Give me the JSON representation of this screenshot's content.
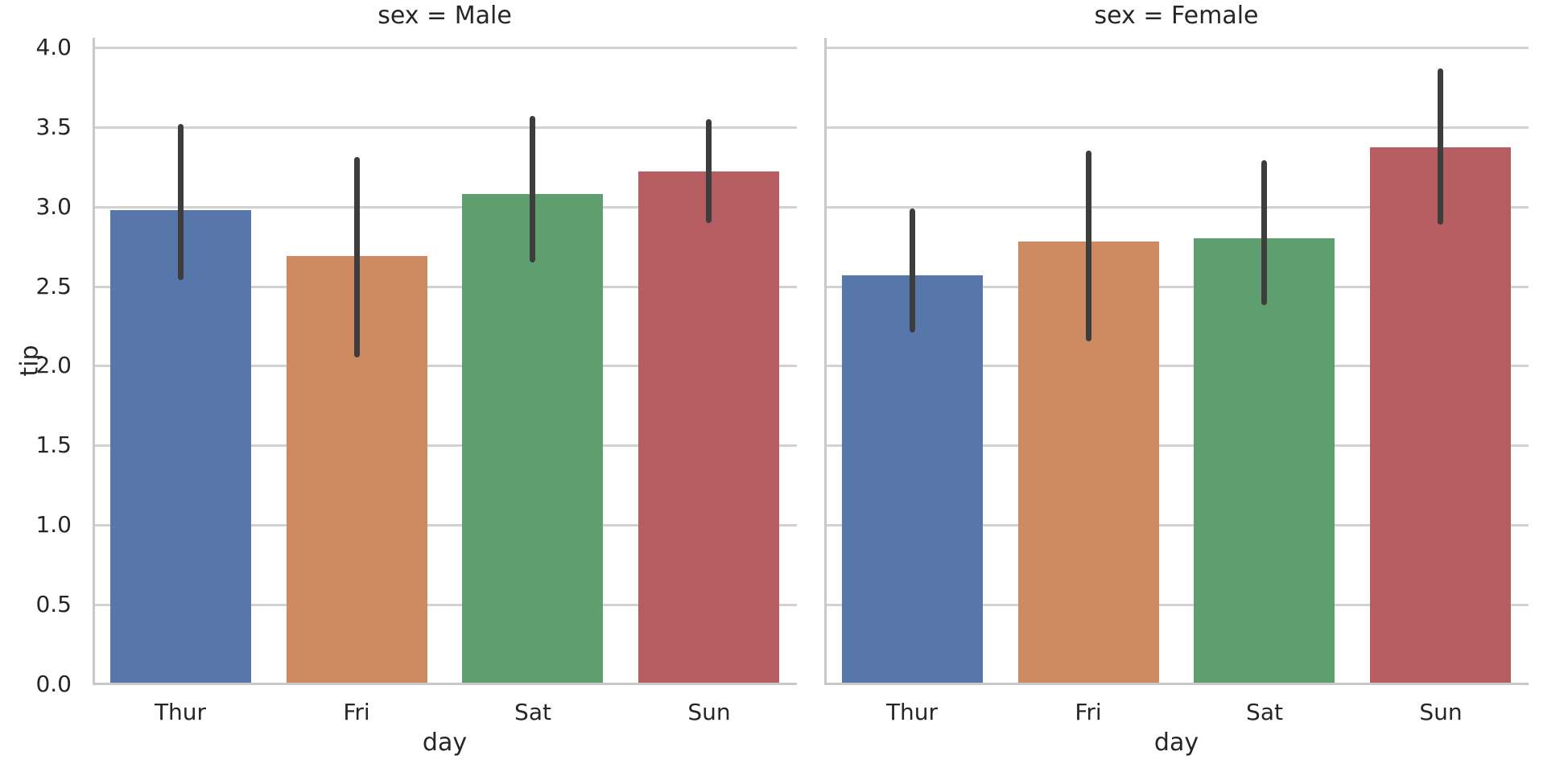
{
  "figure": {
    "background": "#ffffff",
    "text_color": "#262626"
  },
  "chart_data": {
    "type": "bar",
    "facet_by": "sex",
    "categories": [
      "Thur",
      "Fri",
      "Sat",
      "Sun"
    ],
    "xlabel": "day",
    "ylabel": "tip",
    "yticks": [
      0.0,
      0.5,
      1.0,
      1.5,
      2.0,
      2.5,
      3.0,
      3.5,
      4.0
    ],
    "ylim": [
      0,
      4.06
    ],
    "grid": true,
    "legend": "none",
    "bar_width_fraction": 0.8,
    "bar_colors": [
      "#5776a9",
      "#ce8a60",
      "#5f9e6e",
      "#b55d61"
    ],
    "errorbar_color": "#3d3d3d",
    "grid_color": "#d2d2d2",
    "spine_color": "#c8c8c8",
    "facets": [
      {
        "title": "sex = Male",
        "values": [
          2.98,
          2.69,
          3.08,
          3.22
        ],
        "ci": [
          [
            2.54,
            3.52
          ],
          [
            2.05,
            3.31
          ],
          [
            2.65,
            3.57
          ],
          [
            2.9,
            3.55
          ]
        ]
      },
      {
        "title": "sex = Female",
        "values": [
          2.57,
          2.78,
          2.8,
          3.37
        ],
        "ci": [
          [
            2.21,
            2.99
          ],
          [
            2.15,
            3.35
          ],
          [
            2.38,
            3.29
          ],
          [
            2.89,
            3.87
          ]
        ]
      }
    ]
  }
}
